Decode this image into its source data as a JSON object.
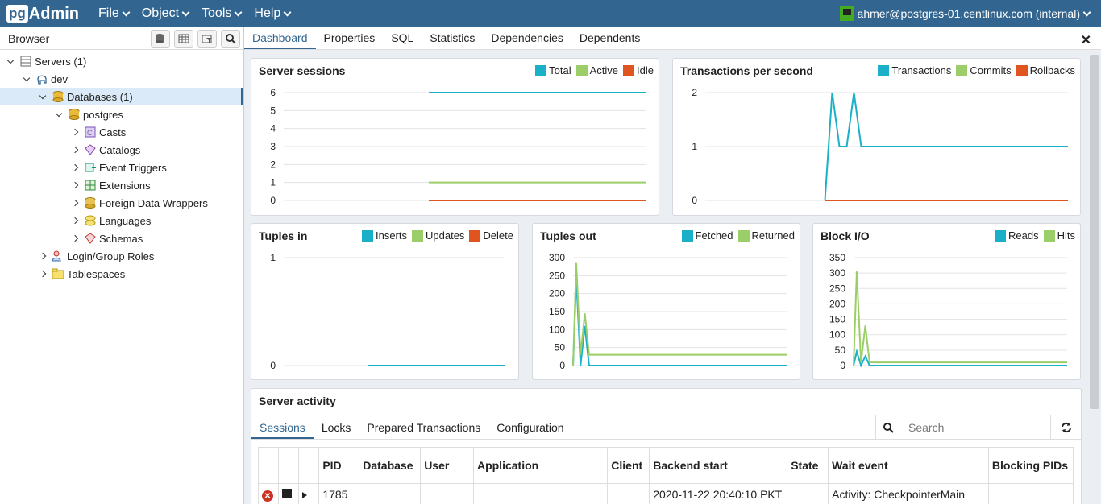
{
  "app": {
    "logo_pg": "pg",
    "logo_admin": "Admin"
  },
  "menu": [
    "File",
    "Object",
    "Tools",
    "Help"
  ],
  "user": {
    "label": "ahmer@postgres-01.centlinux.com (internal)"
  },
  "browser": {
    "title": "Browser",
    "tree": [
      {
        "label": "Servers (1)",
        "icon": "servers-icon",
        "level": 0,
        "state": "open"
      },
      {
        "label": "dev",
        "icon": "elephant-icon",
        "level": 1,
        "state": "open"
      },
      {
        "label": "Databases (1)",
        "icon": "databases-icon",
        "level": 2,
        "state": "open",
        "selected": true
      },
      {
        "label": "postgres",
        "icon": "database-icon",
        "level": 3,
        "state": "open"
      },
      {
        "label": "Casts",
        "icon": "casts-icon",
        "level": 4,
        "state": "closed"
      },
      {
        "label": "Catalogs",
        "icon": "catalogs-icon",
        "level": 4,
        "state": "closed"
      },
      {
        "label": "Event Triggers",
        "icon": "event-triggers-icon",
        "level": 4,
        "state": "closed"
      },
      {
        "label": "Extensions",
        "icon": "extensions-icon",
        "level": 4,
        "state": "closed"
      },
      {
        "label": "Foreign Data Wrappers",
        "icon": "fdw-icon",
        "level": 4,
        "state": "closed"
      },
      {
        "label": "Languages",
        "icon": "languages-icon",
        "level": 4,
        "state": "closed"
      },
      {
        "label": "Schemas",
        "icon": "schemas-icon",
        "level": 4,
        "state": "closed"
      },
      {
        "label": "Login/Group Roles",
        "icon": "roles-icon",
        "level": 2,
        "state": "closed"
      },
      {
        "label": "Tablespaces",
        "icon": "tablespaces-icon",
        "level": 2,
        "state": "closed"
      }
    ]
  },
  "tabs": [
    "Dashboard",
    "Properties",
    "SQL",
    "Statistics",
    "Dependencies",
    "Dependents"
  ],
  "close_label": "✕",
  "colors": {
    "teal": "#1ab0c8",
    "green": "#9bce68",
    "red": "#e0541f",
    "navbar": "#326690"
  },
  "chart_data": [
    {
      "type": "line",
      "title": "Server sessions",
      "series": [
        {
          "name": "Total",
          "color": "#1ab0c8",
          "points": [
            [
              40,
              6
            ],
            [
              100,
              6
            ]
          ]
        },
        {
          "name": "Active",
          "color": "#9bce68",
          "points": [
            [
              40,
              1
            ],
            [
              100,
              1
            ]
          ]
        },
        {
          "name": "Idle",
          "color": "#e0541f",
          "points": [
            [
              40,
              0
            ],
            [
              100,
              0
            ]
          ]
        }
      ],
      "xlim": [
        0,
        100
      ],
      "ylim": [
        0,
        6
      ],
      "yticks": [
        "0",
        "1",
        "2",
        "3",
        "4",
        "5",
        "6"
      ]
    },
    {
      "type": "line",
      "title": "Transactions per second",
      "series": [
        {
          "name": "Transactions",
          "color": "#1ab0c8",
          "points": [
            [
              33,
              0
            ],
            [
              35,
              2
            ],
            [
              37,
              1
            ],
            [
              39,
              1
            ],
            [
              41,
              2
            ],
            [
              43,
              1
            ],
            [
              100,
              1
            ]
          ]
        },
        {
          "name": "Commits",
          "color": "#9bce68",
          "points": []
        },
        {
          "name": "Rollbacks",
          "color": "#e0541f",
          "points": [
            [
              33,
              0
            ],
            [
              100,
              0
            ]
          ]
        }
      ],
      "xlim": [
        0,
        100
      ],
      "ylim": [
        0,
        2
      ],
      "yticks": [
        "0",
        "1",
        "2"
      ]
    },
    {
      "type": "line",
      "title": "Tuples in",
      "series": [
        {
          "name": "Inserts",
          "color": "#1ab0c8",
          "points": [
            [
              38,
              0
            ],
            [
              100,
              0
            ]
          ]
        },
        {
          "name": "Updates",
          "color": "#9bce68",
          "points": []
        },
        {
          "name": "Delete",
          "color": "#e0541f",
          "points": []
        }
      ],
      "xlim": [
        0,
        100
      ],
      "ylim": [
        0,
        1
      ],
      "yticks": [
        "0",
        "1"
      ]
    },
    {
      "type": "line",
      "title": "Tuples out",
      "series": [
        {
          "name": "Fetched",
          "color": "#1ab0c8",
          "points": [
            [
              0,
              0
            ],
            [
              1.5,
              245
            ],
            [
              3.5,
              0
            ],
            [
              5.5,
              110
            ],
            [
              7.5,
              0
            ],
            [
              100,
              0
            ]
          ]
        },
        {
          "name": "Returned",
          "color": "#9bce68",
          "points": [
            [
              0,
              0
            ],
            [
              1.5,
              285
            ],
            [
              3.5,
              30
            ],
            [
              5.5,
              145
            ],
            [
              7.5,
              30
            ],
            [
              100,
              30
            ]
          ]
        }
      ],
      "xlim": [
        0,
        100
      ],
      "ylim": [
        0,
        300
      ],
      "yticks": [
        "0",
        "50",
        "100",
        "150",
        "200",
        "250",
        "300"
      ]
    },
    {
      "type": "line",
      "title": "Block I/O",
      "series": [
        {
          "name": "Reads",
          "color": "#1ab0c8",
          "points": [
            [
              0,
              0
            ],
            [
              1.5,
              45
            ],
            [
              3.5,
              0
            ],
            [
              5.5,
              30
            ],
            [
              7.5,
              0
            ],
            [
              100,
              0
            ]
          ]
        },
        {
          "name": "Hits",
          "color": "#9bce68",
          "points": [
            [
              0,
              0
            ],
            [
              1.5,
              305
            ],
            [
              3.5,
              10
            ],
            [
              5.5,
              130
            ],
            [
              7.5,
              10
            ],
            [
              100,
              10
            ]
          ]
        }
      ],
      "xlim": [
        0,
        100
      ],
      "ylim": [
        0,
        350
      ],
      "yticks": [
        "0",
        "50",
        "100",
        "150",
        "200",
        "250",
        "300",
        "350"
      ]
    }
  ],
  "activity": {
    "title": "Server activity",
    "subtabs": [
      "Sessions",
      "Locks",
      "Prepared Transactions",
      "Configuration"
    ],
    "search_placeholder": "Search",
    "columns": [
      "PID",
      "Database",
      "User",
      "Application",
      "Client",
      "Backend start",
      "State",
      "Wait event",
      "Blocking PIDs"
    ],
    "rows": [
      {
        "pid": "1785",
        "database": "",
        "user": "",
        "application": "",
        "client": "",
        "backend_start": "2020-11-22 20:40:10 PKT",
        "state": "",
        "wait_event": "Activity: CheckpointerMain",
        "blocking": ""
      }
    ]
  }
}
